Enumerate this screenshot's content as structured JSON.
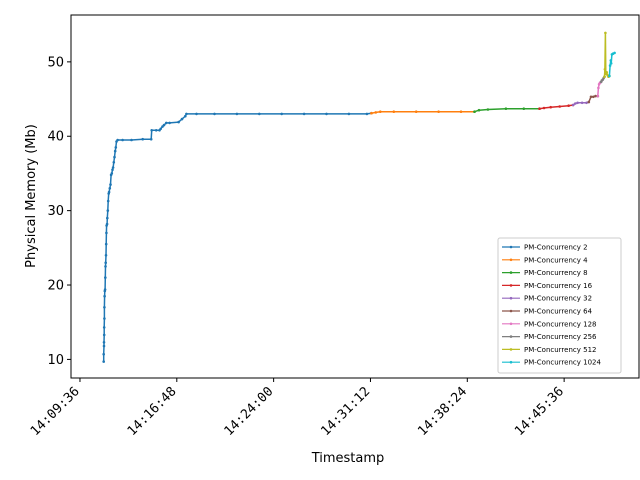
{
  "chart_data": {
    "type": "line",
    "title": "",
    "xlabel": "Timestamp",
    "ylabel": "Physical Memory (Mb)",
    "x_ticks": [
      "14:09:36",
      "14:16:48",
      "14:24:00",
      "14:31:12",
      "14:38:24",
      "14:45:36"
    ],
    "x_tick_seconds": [
      0,
      432,
      864,
      1296,
      1728,
      2160
    ],
    "xlim_seconds": [
      -40,
      2494
    ],
    "y_ticks": [
      10,
      20,
      30,
      40,
      50
    ],
    "ylim": [
      7.5,
      56.3
    ],
    "legend_position": "lower right",
    "series": [
      {
        "name": "PM-Concurrency 2",
        "color": "#1f77b4",
        "points": [
          [
            106,
            9.7
          ],
          [
            106,
            10.7
          ],
          [
            107,
            11.8
          ],
          [
            107,
            12.3
          ],
          [
            108,
            13.3
          ],
          [
            108,
            14.3
          ],
          [
            109,
            15.5
          ],
          [
            109,
            17.0
          ],
          [
            110,
            18.5
          ],
          [
            111,
            19.2
          ],
          [
            112,
            19.4
          ],
          [
            113,
            21.0
          ],
          [
            114,
            22.5
          ],
          [
            115,
            23.0
          ],
          [
            116,
            24.0
          ],
          [
            117,
            25.5
          ],
          [
            118,
            27.0
          ],
          [
            119,
            28.0
          ],
          [
            121,
            28.2
          ],
          [
            122,
            29.0
          ],
          [
            124,
            30.0
          ],
          [
            126,
            31.3
          ],
          [
            128,
            32.3
          ],
          [
            130,
            32.5
          ],
          [
            133,
            33.0
          ],
          [
            136,
            33.5
          ],
          [
            139,
            34.8
          ],
          [
            142,
            35.0
          ],
          [
            145,
            35.5
          ],
          [
            148,
            35.8
          ],
          [
            151,
            36.5
          ],
          [
            154,
            37.2
          ],
          [
            157,
            38.0
          ],
          [
            160,
            38.5
          ],
          [
            163,
            39.3
          ],
          [
            168,
            39.5
          ],
          [
            190,
            39.5
          ],
          [
            230,
            39.5
          ],
          [
            280,
            39.6
          ],
          [
            318,
            39.6
          ],
          [
            320,
            40.8
          ],
          [
            340,
            40.8
          ],
          [
            355,
            40.8
          ],
          [
            360,
            41.0
          ],
          [
            368,
            41.3
          ],
          [
            375,
            41.5
          ],
          [
            385,
            41.8
          ],
          [
            400,
            41.8
          ],
          [
            440,
            41.9
          ],
          [
            455,
            42.3
          ],
          [
            470,
            42.7
          ],
          [
            475,
            43.0
          ],
          [
            520,
            43.0
          ],
          [
            600,
            43.0
          ],
          [
            700,
            43.0
          ],
          [
            800,
            43.0
          ],
          [
            900,
            43.0
          ],
          [
            1000,
            43.0
          ],
          [
            1100,
            43.0
          ],
          [
            1200,
            43.0
          ],
          [
            1280,
            43.0
          ],
          [
            1300,
            43.1
          ]
        ]
      },
      {
        "name": "PM-Concurrency 4",
        "color": "#ff7f0e",
        "points": [
          [
            1300,
            43.1
          ],
          [
            1320,
            43.2
          ],
          [
            1340,
            43.3
          ],
          [
            1400,
            43.3
          ],
          [
            1500,
            43.3
          ],
          [
            1600,
            43.3
          ],
          [
            1700,
            43.3
          ],
          [
            1760,
            43.3
          ]
        ]
      },
      {
        "name": "PM-Concurrency 8",
        "color": "#2ca02c",
        "points": [
          [
            1760,
            43.3
          ],
          [
            1780,
            43.5
          ],
          [
            1820,
            43.6
          ],
          [
            1900,
            43.7
          ],
          [
            1980,
            43.7
          ],
          [
            2050,
            43.7
          ]
        ]
      },
      {
        "name": "PM-Concurrency 16",
        "color": "#d62728",
        "points": [
          [
            2050,
            43.7
          ],
          [
            2070,
            43.8
          ],
          [
            2100,
            43.9
          ],
          [
            2140,
            44.0
          ],
          [
            2180,
            44.1
          ],
          [
            2200,
            44.2
          ]
        ]
      },
      {
        "name": "PM-Concurrency 32",
        "color": "#9467bd",
        "points": [
          [
            2200,
            44.2
          ],
          [
            2210,
            44.4
          ],
          [
            2220,
            44.5
          ],
          [
            2240,
            44.5
          ],
          [
            2260,
            44.5
          ],
          [
            2270,
            44.6
          ]
        ]
      },
      {
        "name": "PM-Concurrency 64",
        "color": "#8c564b",
        "points": [
          [
            2270,
            44.6
          ],
          [
            2280,
            45.3
          ],
          [
            2290,
            45.3
          ],
          [
            2300,
            45.4
          ],
          [
            2310,
            45.4
          ]
        ]
      },
      {
        "name": "PM-Concurrency 128",
        "color": "#e377c2",
        "points": [
          [
            2310,
            45.4
          ],
          [
            2313,
            46.5
          ],
          [
            2316,
            47.0
          ],
          [
            2320,
            47.2
          ],
          [
            2325,
            47.3
          ]
        ]
      },
      {
        "name": "PM-Concurrency 256",
        "color": "#7f7f7f",
        "points": [
          [
            2325,
            47.3
          ],
          [
            2328,
            47.5
          ],
          [
            2332,
            47.6
          ],
          [
            2336,
            47.8
          ],
          [
            2340,
            48.0
          ]
        ]
      },
      {
        "name": "PM-Concurrency 512",
        "color": "#bcbd22",
        "points": [
          [
            2340,
            48.0
          ],
          [
            2342,
            49.0
          ],
          [
            2344,
            53.9
          ],
          [
            2346,
            48.4
          ],
          [
            2350,
            48.6
          ],
          [
            2354,
            48.2
          ],
          [
            2358,
            48.0
          ],
          [
            2362,
            48.1
          ]
        ]
      },
      {
        "name": "PM-Concurrency 1024",
        "color": "#17becf",
        "points": [
          [
            2362,
            48.1
          ],
          [
            2365,
            49.5
          ],
          [
            2368,
            50.2
          ],
          [
            2370,
            49.8
          ],
          [
            2373,
            51.0
          ],
          [
            2378,
            51.1
          ],
          [
            2385,
            51.2
          ]
        ]
      }
    ]
  }
}
